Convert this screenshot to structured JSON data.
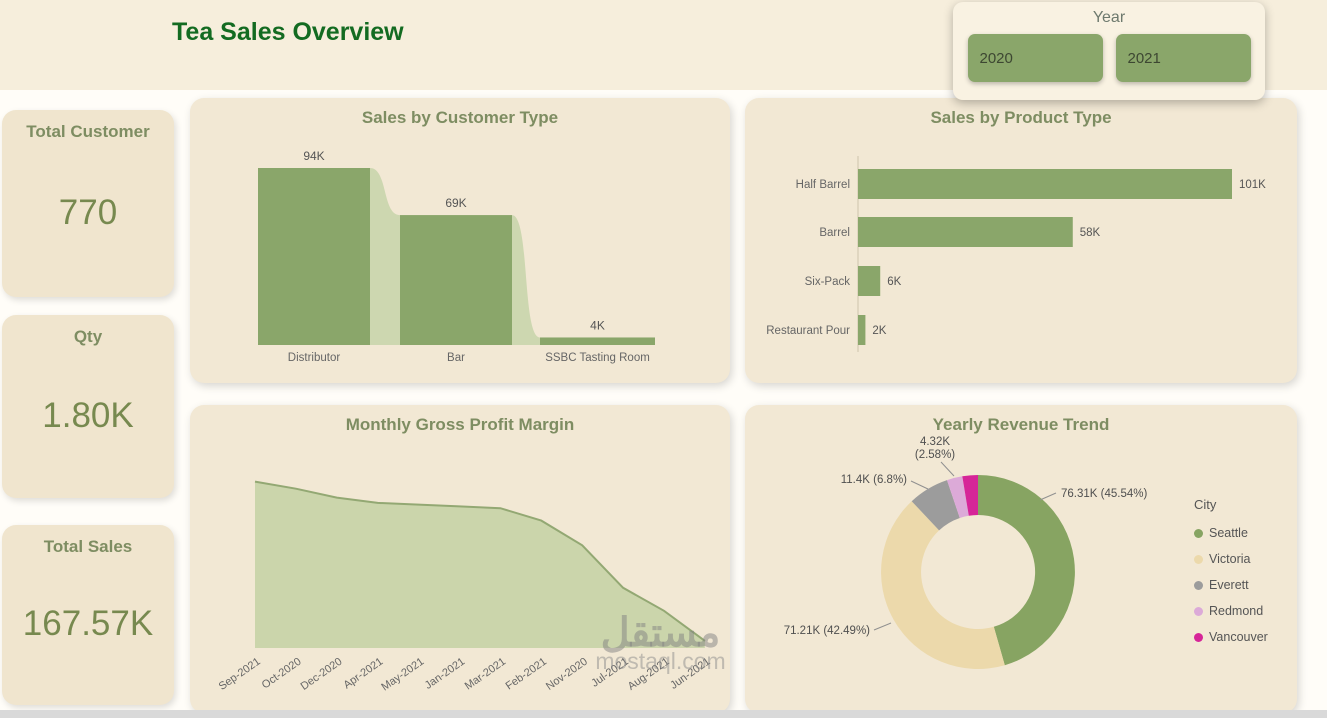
{
  "header": {
    "title": "Tea Sales Overview"
  },
  "year_slicer": {
    "title": "Year",
    "options": [
      "2020",
      "2021"
    ]
  },
  "kpis": [
    {
      "label": "Total Customer",
      "value": "770"
    },
    {
      "label": "Qty",
      "value": "1.80K"
    },
    {
      "label": "Total Sales",
      "value": "167.57K"
    }
  ],
  "watermark": {
    "arabic": "مستقل",
    "latin": "mostaql.com"
  },
  "colors": {
    "accent_green": "#8aa66a",
    "connector_green": "#cdd7b0",
    "area_fill": "#cbd5ab",
    "area_line": "#93a873",
    "title_green": "#136b21",
    "chart_title": "#7e8d62",
    "kpi_value": "#77894f",
    "axis_text": "#666666",
    "value_text": "#555555",
    "leader_gray": "#909090"
  },
  "chart_data": [
    {
      "id": "sales-by-customer-type",
      "type": "funnel",
      "title": "Sales by Customer Type",
      "categories": [
        "Distributor",
        "Bar",
        "SSBC Tasting Room"
      ],
      "values": [
        94,
        69,
        4
      ],
      "value_labels": [
        "94K",
        "69K",
        "4K"
      ],
      "unit": "K"
    },
    {
      "id": "sales-by-product-type",
      "type": "bar",
      "orientation": "horizontal",
      "title": "Sales by Product Type",
      "categories": [
        "Half Barrel",
        "Barrel",
        "Six-Pack",
        "Restaurant Pour"
      ],
      "values": [
        101,
        58,
        6,
        2
      ],
      "value_labels": [
        "101K",
        "58K",
        "6K",
        "2K"
      ],
      "unit": "K"
    },
    {
      "id": "monthly-gross-profit-margin",
      "type": "area",
      "title": "Monthly Gross Profit Margin",
      "categories": [
        "Sep-2021",
        "Oct-2020",
        "Dec-2020",
        "Apr-2021",
        "May-2021",
        "Jan-2021",
        "Mar-2021",
        "Feb-2021",
        "Nov-2020",
        "Jul-2021",
        "Aug-2021",
        "Jun-2021"
      ],
      "values": [
        94,
        90,
        85,
        82,
        81,
        80,
        79,
        72,
        58,
        34,
        21,
        4
      ],
      "values_note": "estimated from plot; no y-axis labels visible",
      "ylim": [
        0,
        100
      ],
      "grid": false
    },
    {
      "id": "yearly-revenue-trend",
      "type": "donut",
      "title": "Yearly Revenue Trend",
      "legend_title": "City",
      "legend_position": "right",
      "series": [
        {
          "name": "Seattle",
          "pct": 45.54,
          "label": "76.31K (45.54%)",
          "color": "#87a462"
        },
        {
          "name": "Victoria",
          "pct": 42.49,
          "label": "71.21K (42.49%)",
          "color": "#ecd9ab"
        },
        {
          "name": "Everett",
          "pct": 6.8,
          "label": "11.4K (6.8%)",
          "color": "#9c9c9c"
        },
        {
          "name": "Redmond",
          "pct": 2.58,
          "label": "4.32K (2.58%)",
          "color": "#dcaad8"
        },
        {
          "name": "Vancouver",
          "pct": 2.59,
          "label": "",
          "color": "#d62598"
        }
      ]
    }
  ]
}
